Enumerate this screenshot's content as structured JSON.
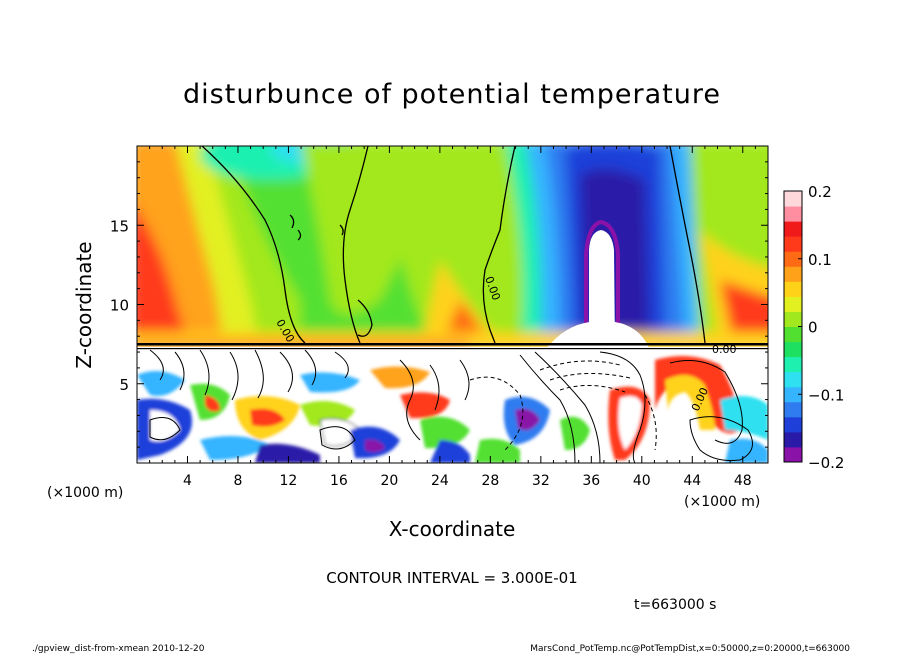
{
  "chart_data": {
    "type": "heatmap",
    "title": "disturbunce of potential temperature",
    "xlabel": "X-coordinate",
    "ylabel": "Z-coordinate",
    "x_unit": "(×1000 m)",
    "y_unit": "(×1000 m)",
    "xlim": [
      0,
      50
    ],
    "ylim": [
      0,
      20
    ],
    "x_ticks": [
      4,
      8,
      12,
      16,
      20,
      24,
      28,
      32,
      36,
      40,
      44,
      48
    ],
    "y_ticks": [
      5,
      10,
      15
    ],
    "colorbar": {
      "range": [
        -0.2,
        0.2
      ],
      "ticks": [
        {
          "value": 0.2,
          "label": "0.2"
        },
        {
          "value": 0.1,
          "label": "0.1"
        },
        {
          "value": 0,
          "label": "0"
        },
        {
          "value": -0.1,
          "label": "−0.1"
        },
        {
          "value": -0.2,
          "label": "−0.2"
        }
      ],
      "colors": [
        "#8a12a8",
        "#2a1aa8",
        "#1f3fd9",
        "#2f7bf0",
        "#35b4ff",
        "#2fe0f0",
        "#1ef0b0",
        "#1ee060",
        "#52e030",
        "#a2e81e",
        "#e2f020",
        "#ffd21a",
        "#ffa21a",
        "#ff6a14",
        "#ff3a1a",
        "#f01a1a",
        "#ff8fa0",
        "#ffd8dc"
      ]
    },
    "contour_labels": [
      "0.00",
      "0.00",
      "0.00",
      "0.00"
    ],
    "annotations": {
      "contour_interval": "CONTOUR INTERVAL = 3.000E-01",
      "time": "t=663000 s",
      "footer_left": "./gpview_dist-from-xmean  2010-12-20",
      "footer_right": "MarsCond_PotTemp.nc@PotTempDist,x=0:50000,z=0:20000,t=663000"
    }
  }
}
